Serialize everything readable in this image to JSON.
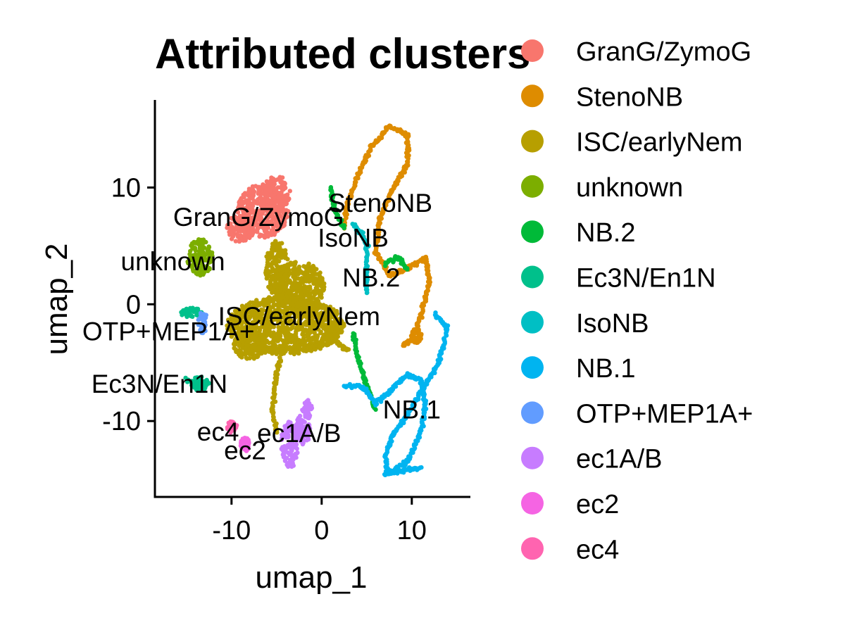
{
  "chart_data": {
    "type": "scatter",
    "title": "Attributed clusters",
    "xlabel": "umap_1",
    "ylabel": "umap_2",
    "xlim": [
      -18.5,
      16.5
    ],
    "ylim": [
      -16.5,
      17.5
    ],
    "xticks": [
      -10,
      0,
      10
    ],
    "xtick_labels": [
      "-10",
      "0",
      "10"
    ],
    "yticks": [
      -10,
      0,
      10
    ],
    "ytick_labels": [
      "-10",
      "0",
      "10"
    ],
    "grid": false,
    "legend_position": "right",
    "series": [
      {
        "name": "GranG/ZymoG",
        "color": "#F8766D",
        "label": {
          "text": "GranG/ZymoG",
          "x": -7,
          "y": 7.5
        },
        "blobs": [
          {
            "x": -6.5,
            "y": 8,
            "rx": 2.8,
            "ry": 2.3
          },
          {
            "x": -9,
            "y": 6.5,
            "rx": 1.5,
            "ry": 1.2
          },
          {
            "x": -5,
            "y": 9.5,
            "rx": 1.5,
            "ry": 1.5
          }
        ]
      },
      {
        "name": "StenoNB",
        "color": "#DE8C00",
        "label": {
          "text": "StenoNB",
          "x": 6.5,
          "y": 8.7
        },
        "paths": [
          [
            [
              2.5,
              6.5
            ],
            [
              2.8,
              8.5
            ],
            [
              4,
              11
            ],
            [
              5.5,
              13.5
            ],
            [
              7.5,
              15.2
            ],
            [
              9.5,
              14.5
            ],
            [
              9.5,
              12
            ],
            [
              8,
              10
            ],
            [
              6.5,
              7.5
            ],
            [
              6,
              4.5
            ],
            [
              7.5,
              2.5
            ],
            [
              9.5,
              3
            ],
            [
              11.5,
              4
            ],
            [
              12,
              2
            ],
            [
              11,
              -1
            ],
            [
              10,
              -3
            ],
            [
              9,
              -3.5
            ]
          ]
        ],
        "blobs": [
          {
            "x": 10.5,
            "y": -2.7,
            "rx": 0.6,
            "ry": 0.6
          }
        ]
      },
      {
        "name": "ISC/earlyNem",
        "color": "#B79F00",
        "label": {
          "text": "ISC/earlyNem",
          "x": -2.5,
          "y": -1
        },
        "blobs": [
          {
            "x": -4,
            "y": -1.8,
            "rx": 6.5,
            "ry": 2.5
          },
          {
            "x": -2.5,
            "y": 1.5,
            "rx": 2.8,
            "ry": 2.2
          },
          {
            "x": -8,
            "y": -3.5,
            "rx": 1.8,
            "ry": 1.2
          },
          {
            "x": -5,
            "y": 3,
            "rx": 1.3,
            "ry": 2.5
          }
        ],
        "paths": [
          [
            [
              -4,
              -3
            ],
            [
              -5,
              -6
            ],
            [
              -5.5,
              -9
            ],
            [
              -5,
              -11
            ]
          ],
          [
            [
              0.5,
              -2.5
            ],
            [
              2,
              -3.5
            ],
            [
              3,
              -4
            ]
          ]
        ]
      },
      {
        "name": "unknown",
        "color": "#7CAE00",
        "label": {
          "text": "unknown",
          "x": -16.5,
          "y": 3.7
        },
        "blobs": [
          {
            "x": -13.5,
            "y": 4,
            "rx": 1.4,
            "ry": 1.6
          }
        ]
      },
      {
        "name": "NB.2",
        "color": "#00BA38",
        "label": {
          "text": "NB.2",
          "x": 5.5,
          "y": 2.3
        },
        "paths": [
          [
            [
              3.5,
              -2.5
            ],
            [
              4,
              -4.5
            ],
            [
              5,
              -7
            ],
            [
              6,
              -9
            ]
          ],
          [
            [
              1,
              10
            ],
            [
              1.5,
              8
            ],
            [
              2.5,
              6.5
            ]
          ],
          [
            [
              7,
              3.5
            ],
            [
              8.5,
              4
            ],
            [
              9.5,
              3
            ]
          ]
        ]
      },
      {
        "name": "Ec3N/En1N",
        "color": "#00C08B",
        "label": {
          "text": "Ec3N/En1N",
          "x": -18,
          "y": -6.8
        },
        "blobs": [
          {
            "x": -13.5,
            "y": -6.8,
            "rx": 1.0,
            "ry": 0.6
          },
          {
            "x": -14.5,
            "y": -0.7,
            "rx": 1.2,
            "ry": 0.4
          }
        ],
        "paths": [
          [
            [
              -15,
              -6.5
            ],
            [
              -13,
              -7
            ]
          ]
        ]
      },
      {
        "name": "IsoNB",
        "color": "#00BFC4",
        "label": {
          "text": "IsoNB",
          "x": 3.5,
          "y": 5.7
        },
        "paths": [
          [
            [
              3.5,
              6.8
            ],
            [
              4.5,
              6
            ],
            [
              5,
              5
            ],
            [
              5,
              3
            ],
            [
              5,
              1
            ]
          ]
        ]
      },
      {
        "name": "NB.1",
        "color": "#00B4F0",
        "label": {
          "text": "NB.1",
          "x": 10,
          "y": -9
        },
        "paths": [
          [
            [
              12.5,
              -0.8
            ],
            [
              14,
              -2
            ],
            [
              13,
              -5
            ],
            [
              11,
              -7.5
            ],
            [
              9.5,
              -9.5
            ],
            [
              8,
              -11
            ],
            [
              7,
              -13
            ],
            [
              7.5,
              -14.5
            ],
            [
              9.5,
              -13.5
            ],
            [
              11,
              -11
            ],
            [
              11.5,
              -8.5
            ],
            [
              11,
              -6.5
            ],
            [
              9.5,
              -6
            ],
            [
              7.5,
              -7.5
            ],
            [
              6,
              -8.5
            ],
            [
              4.5,
              -7
            ],
            [
              2.5,
              -7
            ]
          ],
          [
            [
              7,
              -14.5
            ],
            [
              11,
              -14
            ]
          ]
        ]
      },
      {
        "name": "OTP+MEP1A+",
        "color": "#619CFF",
        "label": {
          "text": "OTP+MEP1A+",
          "x": -17,
          "y": -2.3
        },
        "blobs": [
          {
            "x": -13.2,
            "y": -1.5,
            "rx": 0.5,
            "ry": 1.0
          }
        ]
      },
      {
        "name": "ec1A/B",
        "color": "#C77CFF",
        "label": {
          "text": "ec1A/B",
          "x": -2.5,
          "y": -11
        },
        "blobs": [
          {
            "x": -3.5,
            "y": -12,
            "rx": 1.0,
            "ry": 2.0
          },
          {
            "x": -2,
            "y": -10.5,
            "rx": 0.8,
            "ry": 1.5
          },
          {
            "x": -1.5,
            "y": -9,
            "rx": 0.5,
            "ry": 0.8
          }
        ]
      },
      {
        "name": "ec2",
        "color": "#F564E3",
        "label": {
          "text": "ec2",
          "x": -8.5,
          "y": -12.5
        },
        "blobs": [
          {
            "x": -8.5,
            "y": -12,
            "rx": 0.5,
            "ry": 0.6
          }
        ]
      },
      {
        "name": "ec4",
        "color": "#FF64B0",
        "label": {
          "text": "ec4",
          "x": -11.5,
          "y": -10.9
        },
        "blobs": [
          {
            "x": -10,
            "y": -10.5,
            "rx": 0.6,
            "ry": 0.5
          }
        ]
      }
    ]
  }
}
